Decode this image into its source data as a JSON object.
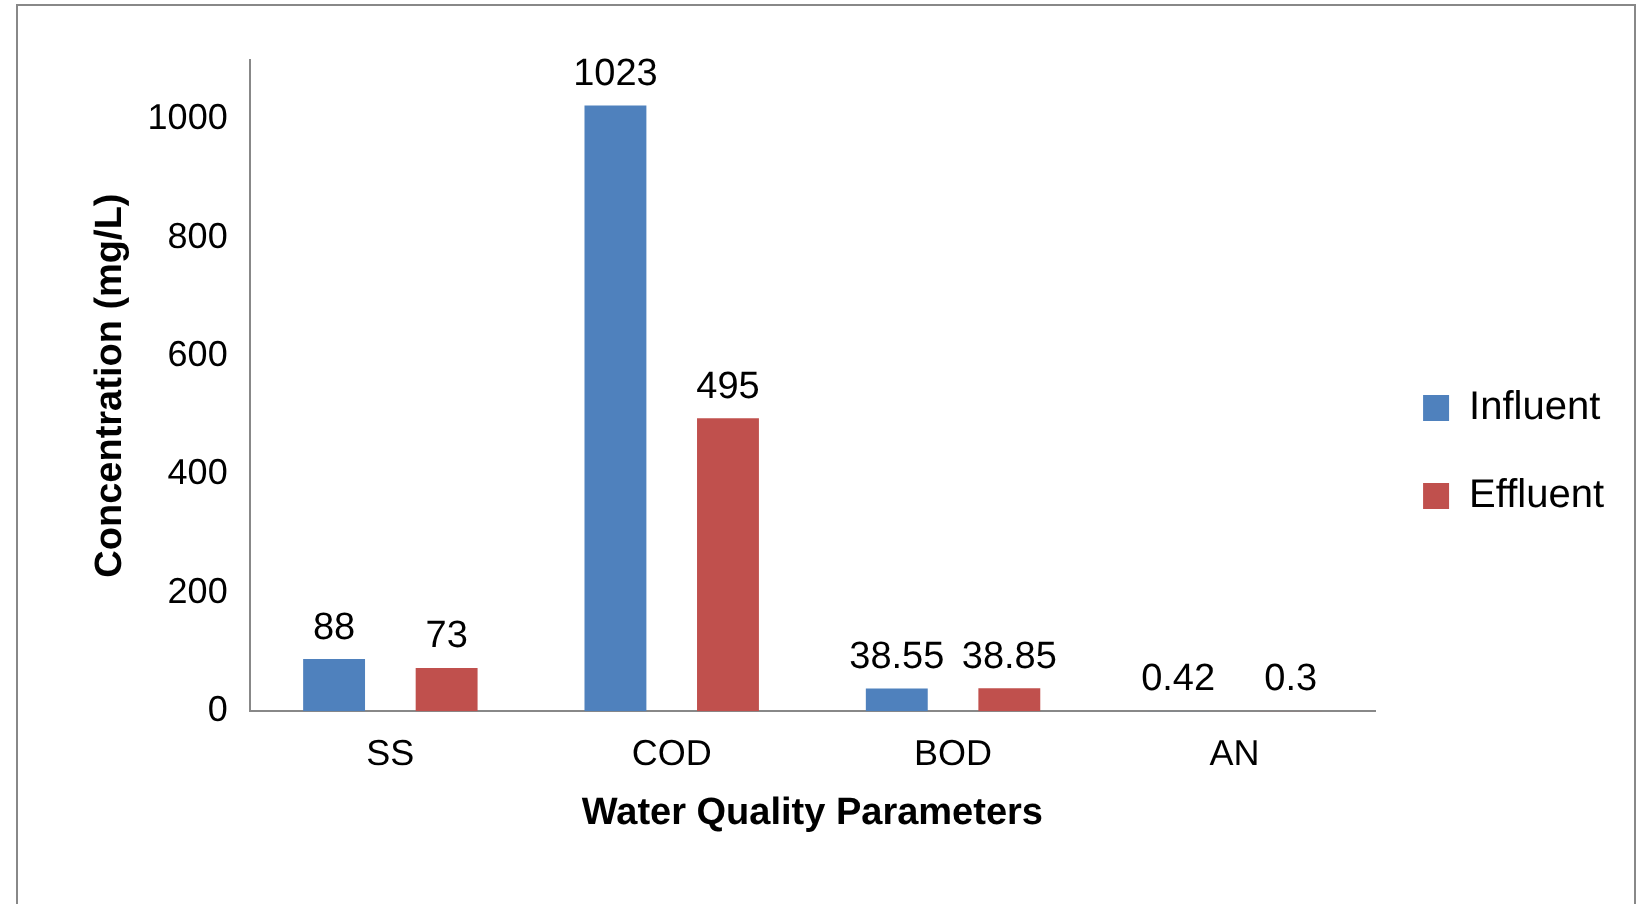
{
  "chart_data": {
    "type": "bar",
    "xlabel": "Water Quality Parameters",
    "ylabel": "Concentration (mg/L)",
    "categories": [
      "SS",
      "COD",
      "BOD",
      "AN"
    ],
    "series": [
      {
        "name": "Influent",
        "color": "#4f81bd",
        "values": [
          88,
          1023,
          38.55,
          0.42
        ]
      },
      {
        "name": "Effluent",
        "color": "#c0504d",
        "values": [
          73,
          495,
          38.85,
          0.3
        ]
      }
    ],
    "ylim": [
      0,
      1100
    ],
    "yticks": [
      0,
      200,
      400,
      600,
      800,
      1000
    ],
    "grid": false,
    "legend": "right",
    "data_labels": true
  }
}
